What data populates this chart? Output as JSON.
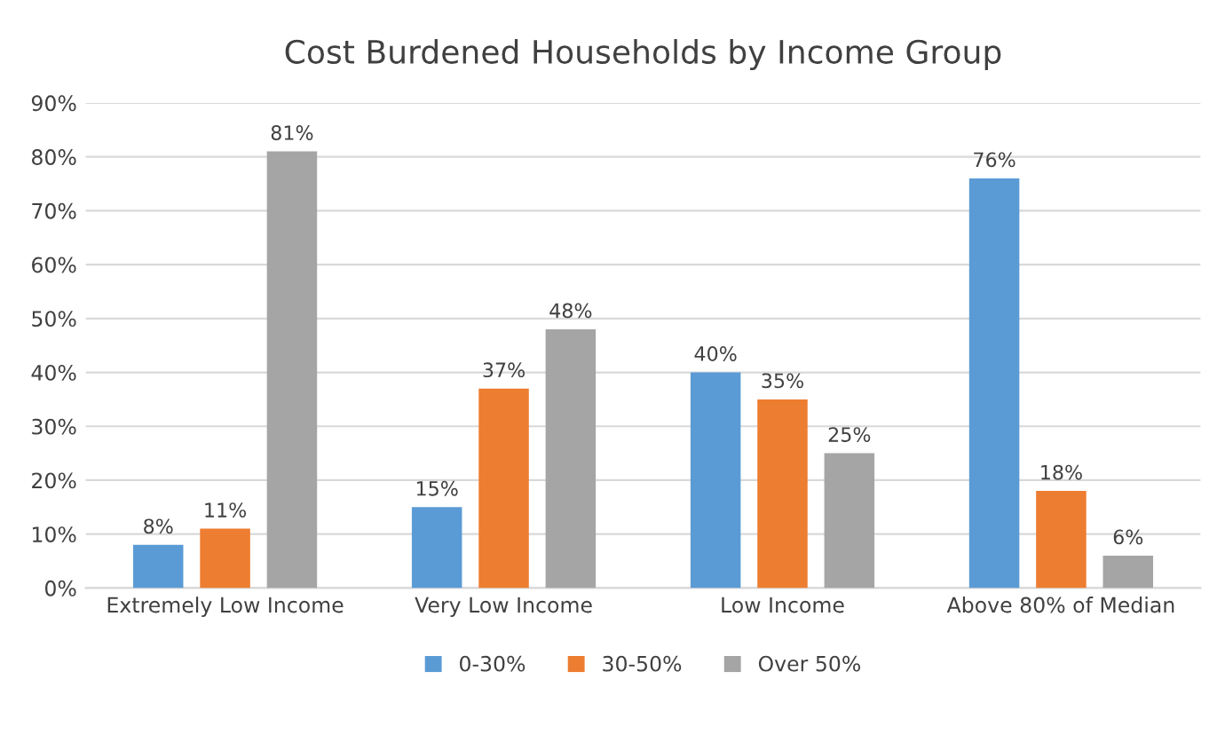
{
  "chart_data": {
    "type": "bar",
    "title": "Cost Burdened Households by Income Group",
    "categories": [
      "Extremely Low Income",
      "Very Low Income",
      "Low Income",
      "Above 80% of Median"
    ],
    "series": [
      {
        "name": "0-30%",
        "color": "#5b9bd5",
        "values": [
          8,
          15,
          40,
          76
        ],
        "value_labels": [
          "8%",
          "15%",
          "40%",
          "76%"
        ]
      },
      {
        "name": "30-50%",
        "color": "#ed7d31",
        "values": [
          11,
          37,
          35,
          18
        ],
        "value_labels": [
          "11%",
          "37%",
          "35%",
          "18%"
        ]
      },
      {
        "name": "Over 50%",
        "color": "#a5a5a5",
        "values": [
          81,
          48,
          25,
          6
        ],
        "value_labels": [
          "81%",
          "48%",
          "25%",
          "6%"
        ]
      }
    ],
    "ylim": [
      0,
      90
    ],
    "yticks": [
      {
        "value": 0,
        "label": "0%"
      },
      {
        "value": 10,
        "label": "10%"
      },
      {
        "value": 20,
        "label": "20%"
      },
      {
        "value": 30,
        "label": "30%"
      },
      {
        "value": 40,
        "label": "40%"
      },
      {
        "value": 50,
        "label": "50%"
      },
      {
        "value": 60,
        "label": "60%"
      },
      {
        "value": 70,
        "label": "70%"
      },
      {
        "value": 80,
        "label": "80%"
      },
      {
        "value": 90,
        "label": "90%"
      }
    ],
    "grid": "y",
    "legend": "bottom"
  }
}
